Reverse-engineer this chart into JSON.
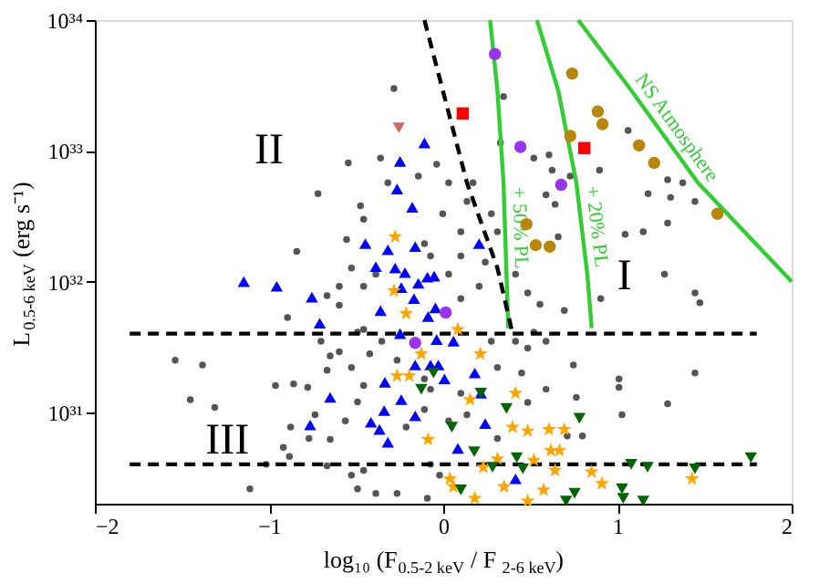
{
  "chart_data": {
    "type": "scatter",
    "xlabel": "log₁₀ (F$_{0.5-2 keV}$ / F$_{2-6 keV}$)",
    "ylabel": "L$_{0.5-6 keV}$ (erg s⁻¹)",
    "log": "y",
    "xlim": [
      -2,
      2
    ],
    "ylim": [
      2e+30,
      1e+34
    ],
    "xticks": [
      -2,
      -1,
      0,
      1,
      2
    ],
    "yticks": [
      {
        "value": 1e+31,
        "label": "10³¹"
      },
      {
        "value": 1e+32,
        "label": "10³²"
      },
      {
        "value": 1e+33,
        "label": "10³³"
      },
      {
        "value": 1e+34,
        "label": "10³⁴"
      }
    ],
    "grid": false,
    "annotations": [
      "I",
      "II",
      "III"
    ],
    "series": [
      {
        "type": "scatter",
        "marker": "circle",
        "color": "#555555",
        "x": [
          -0.283,
          -0.545,
          -0.36,
          -0.719,
          -0.475,
          -0.555,
          -0.841,
          -0.667,
          -0.597,
          -0.894,
          -0.457,
          -0.318,
          -0.143,
          -0.038,
          0.031,
          0.136,
          0.171,
          0.101,
          0.031,
          0.101,
          0.206,
          0.241,
          0.311,
          0.328,
          0.346,
          0.52,
          0.607,
          0.625,
          0.59,
          0.642,
          0.729,
          0.897,
          1.061,
          1.288,
          1.375,
          1.176,
          1.305,
          1.445,
          1.288,
          1.148,
          1.044,
          1.27,
          1.445,
          1.473,
          0.904,
          0.695,
          0.66,
          1.009,
          1.009,
          1.288,
          1.445,
          1.026,
          0.747,
          0.59,
          0.485,
          0.45,
          0.59,
          0.485,
          0.764,
          0.712,
          0.799,
          -1.539,
          -1.382,
          -1.452,
          -1.312,
          -0.963,
          -0.859,
          -0.778,
          -0.702,
          -0.649,
          -0.597,
          -0.667,
          -0.527,
          -0.422,
          -0.492,
          -0.457,
          -0.492,
          -0.562,
          -0.649,
          -0.771,
          -0.918,
          -0.883,
          -1.016,
          -1.11,
          -0.667,
          -0.527,
          -0.492,
          -0.457,
          -0.387,
          -0.265,
          -0.091,
          -0.021,
          -0.073,
          0.101,
          0.136,
          0.031,
          -0.108,
          -0.213,
          0.311,
          0.311,
          0.276,
          0.415,
          0.52,
          -0.457,
          -0.353,
          -0.265,
          -0.108,
          -0.073,
          -0.457,
          -0.597,
          -0.527,
          -0.387,
          -0.108,
          -0.073,
          0.101,
          -0.003,
          0.276,
          0.415,
          0.485,
          0.555,
          -0.736,
          -0.876
        ],
        "values": [
          3e+33,
          8.1e+32,
          8.8e+32,
          4.7e+32,
          3.8e+32,
          2.1e+32,
          1.7e+32,
          7.8e+31,
          6.6e+31,
          5.3e+31,
          3e+32,
          5.7e+32,
          6.4e+32,
          7.9e+32,
          5.7e+32,
          4.1e+32,
          5.7e+32,
          2.4e+32,
          1.14e+32,
          7.4e+31,
          9.2e+31,
          1.41e+32,
          2.4e+32,
          1.15e+33,
          2.6e+33,
          8.8e+32,
          9.3e+32,
          7.1e+32,
          4.6e+32,
          3.9e+32,
          6.4e+32,
          7.1e+32,
          1.43e+33,
          6e+32,
          5.7e+32,
          4.7e+32,
          4.4e+32,
          4.1e+32,
          2.8e+32,
          2.4e+32,
          2.3e+32,
          1.14e+32,
          8.2e+31,
          6.9e+31,
          7.4e+31,
          6e+31,
          2.2e+32,
          1.8e+31,
          1.55e+31,
          1.16e+31,
          2e+31,
          9.6e+30,
          2.3e+31,
          3.5e+31,
          3.1e+31,
          2e+31,
          1.5e+31,
          1.19e+31,
          1.3e+31,
          6.6e+30,
          6.6e+30,
          2.5e+31,
          2.3e+31,
          1.25e+31,
          1.09e+31,
          1.6e+31,
          1.65e+31,
          1.55e+31,
          3.5e+31,
          2.7e+31,
          2.9e+31,
          2.1e+31,
          2.2e+31,
          2.8e+31,
          4.1e+31,
          1.6e+31,
          1.2e+31,
          8.6e+30,
          6.2e+30,
          6.3e+30,
          5.4e+30,
          4.6e+30,
          4e+30,
          2.6e+30,
          3.9e+30,
          3.3e+30,
          2.6e+30,
          3.6e+30,
          2.4e+30,
          2.4e+30,
          2.2e+30,
          3.3e+30,
          4e+30,
          1.4e+31,
          9.6e+30,
          8.6e+30,
          1.05e+31,
          7.7e+30,
          6.3e+30,
          2.2e+31,
          3.5e+31,
          3.5e+31,
          4.1e+31,
          4.3e+31,
          3.5e+31,
          2.5e+31,
          1.8e+31,
          1.5e+31,
          9.2e+31,
          9.2e+31,
          1.27e+32,
          1.14e+32,
          1.95e+32,
          1.57e+32,
          1.57e+32,
          3.3e+32,
          3.3e+32,
          1.14e+32,
          8.2e+31,
          6.7e+31,
          9.6e+30,
          7.7e+30
        ]
      },
      {
        "type": "line",
        "name": "+ 50% PL",
        "color": "#33cc33",
        "line_style": "solid",
        "x": [
          0.269,
          0.311,
          0.346,
          0.363,
          0.373
        ],
        "values": [
          1e+34,
          2.9e+33,
          5.7e+32,
          1.14e+32,
          4.4e+31
        ]
      },
      {
        "type": "line",
        "name": "+ 20% PL",
        "color": "#33cc33",
        "line_style": "solid",
        "x": [
          0.538,
          0.66,
          0.764,
          0.827,
          0.852
        ],
        "values": [
          1e+34,
          2.9e+33,
          5.7e+32,
          1.14e+32,
          4.4e+31
        ]
      },
      {
        "type": "line",
        "name": "NS Atmosphere",
        "color": "#33cc33",
        "line_style": "solid",
        "x": [
          0.775,
          1.079,
          1.462,
          2.0
        ],
        "values": [
          1e+34,
          2.9e+33,
          5.7e+32,
          1e+32
        ]
      },
      {
        "type": "line",
        "color": "#000000",
        "line_style": "dashed",
        "x": [
          -0.108,
          0.136,
          0.311,
          0.398
        ],
        "values": [
          1e+34,
          5.7e+32,
          1.27e+32,
          4e+31
        ]
      },
      {
        "type": "line",
        "color": "#000000",
        "line_style": "dashed",
        "x": [
          -1.8,
          1.8
        ],
        "values": [
          4e+31,
          4e+31
        ]
      },
      {
        "type": "line",
        "color": "#000000",
        "line_style": "dashed",
        "x": [
          -1.8,
          1.8
        ],
        "values": [
          4e+30,
          4e+30
        ]
      },
      {
        "type": "scatter",
        "marker": "triangle",
        "color": "#0000ff",
        "x": [
          -1.145,
          -0.956,
          -0.754,
          -0.709,
          -0.649,
          -0.764,
          -0.447,
          -0.387,
          -0.36,
          -0.265,
          -0.248,
          -0.178,
          -0.108,
          -0.276,
          -0.241,
          -0.318,
          -0.161,
          -0.22,
          -0.143,
          -0.091,
          -0.052,
          -0.168,
          -0.087,
          -0.045,
          -0.248,
          -0.143,
          -0.038,
          0.059,
          -0.161,
          -0.028,
          -0.335,
          -0.241,
          -0.161,
          -0.339,
          -0.415,
          -0.366,
          -0.318,
          0.181,
          0.206,
          0.216,
          0.241,
          0.084,
          0.415,
          0.007,
          -0.073
        ],
        "values": [
          1e+32,
          9.2e+31,
          7.6e+31,
          4.8e+31,
          1.3e+31,
          8e+30,
          1.95e+32,
          1.3e+32,
          6e+31,
          5.1e+32,
          8.3e+32,
          3.7e+32,
          1.15e+33,
          1.27e+32,
          9e+31,
          1.75e+32,
          1.85e+32,
          1.17e+32,
          9.7e+31,
          1.08e+32,
          1.1e+32,
          7.4e+31,
          5.4e+31,
          6.3e+31,
          4e+31,
          null,
          3.6e+31,
          3.5e+31,
          2.3e+31,
          2.3e+31,
          1.7e+31,
          1.25e+31,
          9.4e+30,
          1.03e+31,
          8.4e+30,
          7.4e+30,
          5.9e+30,
          2e+31,
          1.95e+32,
          1.4e+31,
          8.2e+30,
          5.3e+30,
          3.1e+30,
          1.8e+31,
          2.3e+31
        ]
      },
      {
        "type": "scatter",
        "marker": "star",
        "color": "#ffa500",
        "x": [
          -0.276,
          -0.283,
          -0.213,
          0.084,
          -0.126,
          -0.265,
          -0.195,
          0.213,
          0.154,
          0.415,
          -0.087,
          0.398,
          0.485,
          0.607,
          0.695,
          0.618,
          0.667,
          0.52,
          0.311,
          0.23,
          0.642,
          0.852,
          0.911,
          1.428,
          0.038,
          0.059,
          0.349,
          0.576,
          0.485,
          0.181
        ],
        "values": [
          2.2e+32,
          8.5e+31,
          5.7e+31,
          4.3e+31,
          2.8e+31,
          1.9e+31,
          1.9e+31,
          2.8e+31,
          1.25e+31,
          1.4e+31,
          6.2e+30,
          7.7e+30,
          7.2e+30,
          7.4e+30,
          7.4e+30,
          5.1e+30,
          5.1e+30,
          4.3e+30,
          4.4e+30,
          3.8e+30,
          3.6e+30,
          3.5e+30,
          2.85e+30,
          3.1e+30,
          3.1e+30,
          2.7e+30,
          2.7e+30,
          2.55e+30,
          2.1e+30,
          2.2e+30
        ]
      },
      {
        "type": "scatter",
        "marker": "triangle-down",
        "color": "#006400",
        "x": [
          -0.056,
          -0.126,
          0.216,
          0.363,
          0.049,
          0.782,
          0.178,
          0.422,
          0.283,
          0.457,
          1.079,
          1.173,
          1.445,
          1.766,
          0.101,
          0.754,
          1.026,
          1.033,
          0.705,
          1.148
        ],
        "values": [
          2e+31,
          1.5e+31,
          1.4e+31,
          1.07e+31,
          7.7e+30,
          9e+30,
          5e+30,
          4.5e+30,
          3.8e+30,
          3.7e+30,
          4e+30,
          3.8e+30,
          3.7e+30,
          4.5e+30,
          2.55e+30,
          2.4e+30,
          2.6e+30,
          2.2e+30,
          2.1e+30,
          2.1e+30
        ]
      },
      {
        "type": "scatter",
        "marker": "circle",
        "color": "#9933ee",
        "x": [
          0.297,
          0.443,
          0.677,
          0.014,
          -0.161
        ],
        "values": [
          5.5e+33,
          1.07e+33,
          5.5e+32,
          5.8e+31,
          3.4e+31
        ]
      },
      {
        "type": "scatter",
        "marker": "circle",
        "color": "#b8860b",
        "x": [
          0.74,
          0.887,
          0.914,
          0.729,
          1.124,
          1.211,
          1.574,
          0.478,
          0.531,
          0.611
        ],
        "values": [
          3.9e+33,
          2e+33,
          1.6e+33,
          1.3e+33,
          1.1e+33,
          8.1e+32,
          3.3e+32,
          2.75e+32,
          1.9e+32,
          1.85e+32
        ]
      },
      {
        "type": "scatter",
        "marker": "square",
        "color": "#ff0000",
        "x": [
          0.112,
          0.81
        ],
        "values": [
          1.93e+33,
          1.05e+33
        ]
      },
      {
        "type": "scatter",
        "marker": "triangle-down",
        "color": "#cc6666",
        "x": [
          -0.255
        ],
        "values": [
          1.5e+33
        ]
      }
    ]
  }
}
